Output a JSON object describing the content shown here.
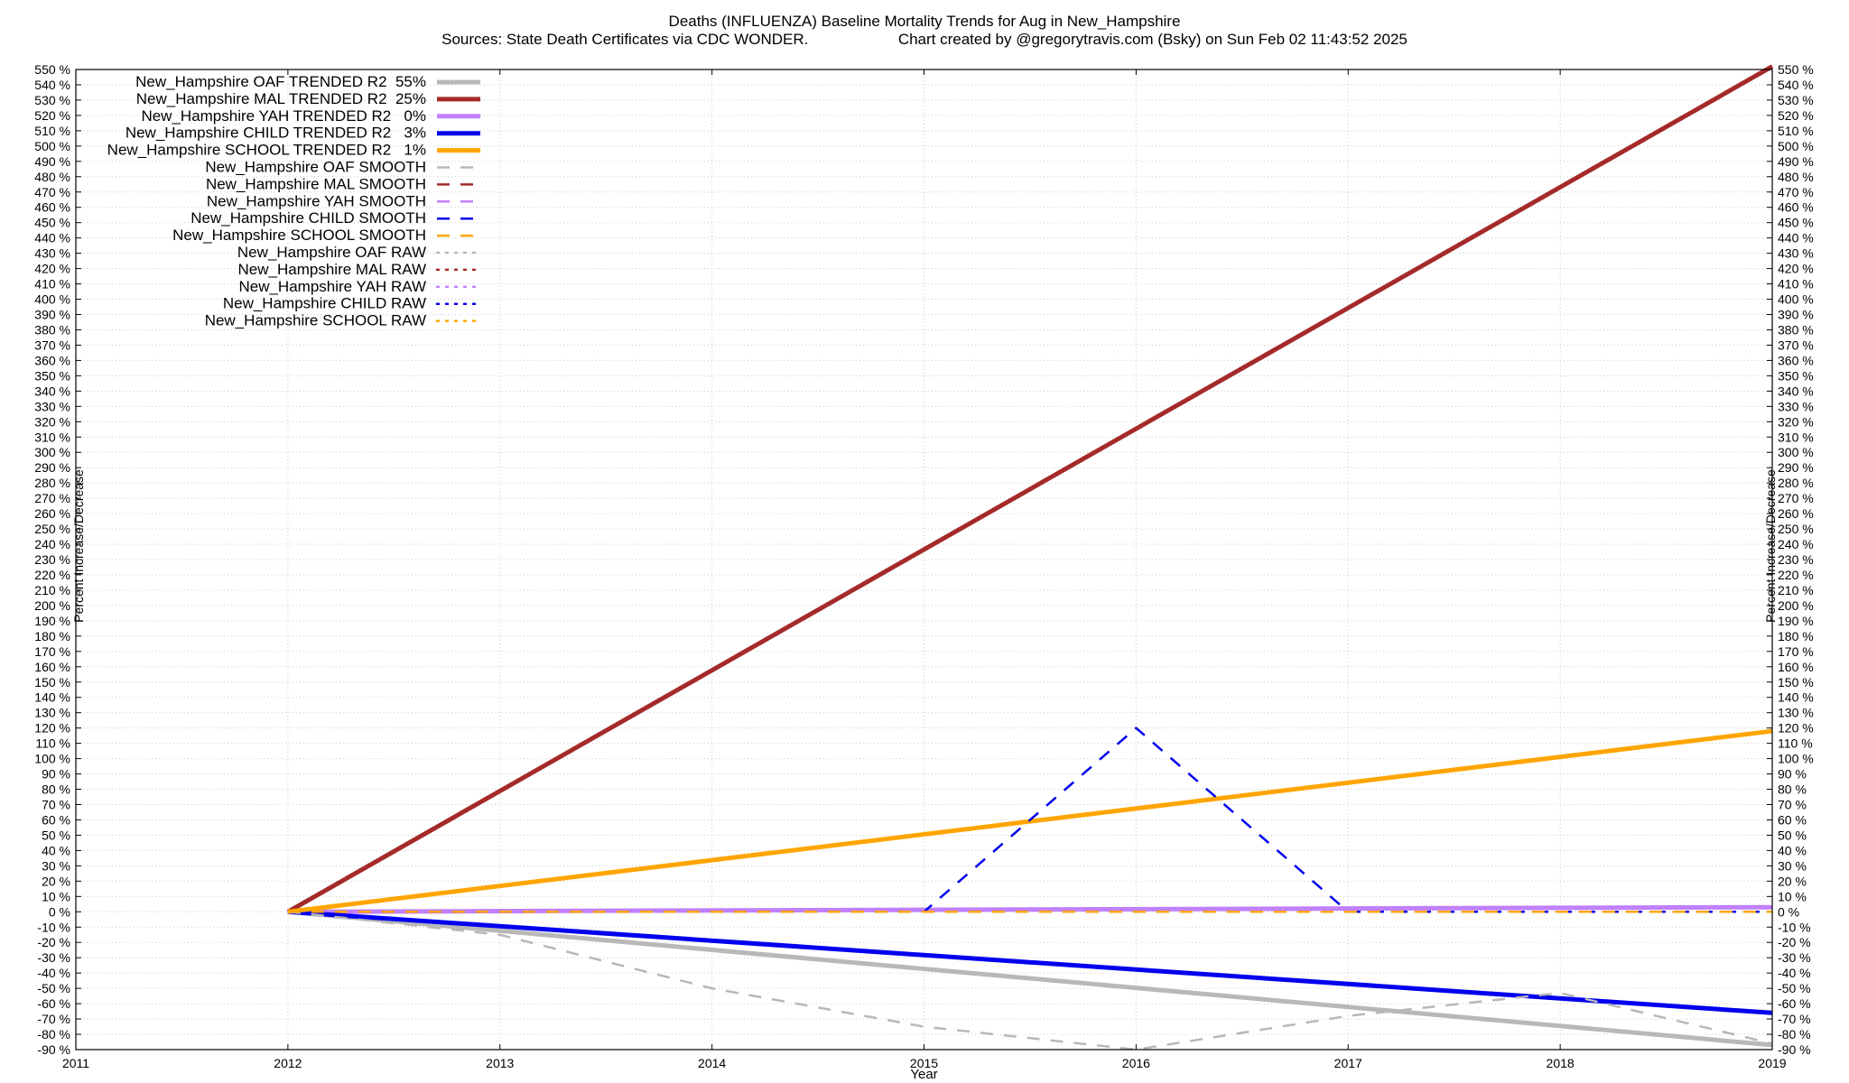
{
  "chart_data": {
    "type": "line",
    "title": "Deaths (INFLUENZA)  Baseline Mortality Trends for Aug in New_Hampshire",
    "subtitle_left": "Sources: State Death Certificates via CDC WONDER.",
    "subtitle_right": "Chart created by @gregorytravis.com (Bsky) on Sun Feb 02 11:43:52 2025",
    "xlabel": "Year",
    "ylabel": "Percent Increase/Decrease",
    "xlim": [
      2011,
      2019
    ],
    "ylim": [
      -90,
      550
    ],
    "xticks": [
      2011,
      2012,
      2013,
      2014,
      2015,
      2016,
      2017,
      2018,
      2019
    ],
    "ytick_step": 10,
    "ytick_suffix": " %",
    "grid": true,
    "legend_position": "top-left",
    "series": [
      {
        "name": "New_Hampshire OAF TRENDED R2  55%",
        "style": "solid",
        "width": 5,
        "color": "#b8b8b8",
        "x": [
          2012,
          2019
        ],
        "y": [
          0,
          -87
        ]
      },
      {
        "name": "New_Hampshire MAL TRENDED R2  25%",
        "style": "solid",
        "width": 5,
        "color": "#a52a2a",
        "x": [
          2012,
          2019
        ],
        "y": [
          0,
          552
        ]
      },
      {
        "name": "New_Hampshire YAH TRENDED R2   0%",
        "style": "solid",
        "width": 5,
        "color": "#c080ff",
        "x": [
          2012,
          2019
        ],
        "y": [
          0,
          3
        ]
      },
      {
        "name": "New_Hampshire CHILD TRENDED R2   3%",
        "style": "solid",
        "width": 5,
        "color": "#0000ee",
        "x": [
          2012,
          2019
        ],
        "y": [
          0,
          -66
        ]
      },
      {
        "name": "New_Hampshire SCHOOL TRENDED R2   1%",
        "style": "solid",
        "width": 5,
        "color": "#ffa500",
        "x": [
          2012,
          2019
        ],
        "y": [
          0,
          118
        ]
      },
      {
        "name": "New_Hampshire OAF SMOOTH",
        "style": "dashed",
        "width": 2.5,
        "color": "#b8b8b8",
        "x": [
          2012,
          2013,
          2014,
          2015,
          2016,
          2017,
          2018,
          2019
        ],
        "y": [
          0,
          -15,
          -50,
          -75,
          -90,
          -68,
          -53,
          -86
        ]
      },
      {
        "name": "New_Hampshire MAL SMOOTH",
        "style": "dashed",
        "width": 2.5,
        "color": "#a52a2a",
        "x": [
          2012,
          2019
        ],
        "y": [
          0,
          0
        ]
      },
      {
        "name": "New_Hampshire YAH SMOOTH",
        "style": "dashed",
        "width": 2.5,
        "color": "#c080ff",
        "x": [
          2012,
          2019
        ],
        "y": [
          0,
          0
        ]
      },
      {
        "name": "New_Hampshire CHILD SMOOTH",
        "style": "dashed",
        "width": 2.5,
        "color": "#0000ee",
        "x": [
          2012,
          2013,
          2014,
          2015,
          2016,
          2017,
          2018,
          2019
        ],
        "y": [
          0,
          0,
          0,
          0,
          120,
          0,
          0,
          0
        ]
      },
      {
        "name": "New_Hampshire SCHOOL SMOOTH",
        "style": "dashed",
        "width": 2.5,
        "color": "#ffa500",
        "x": [
          2012,
          2019
        ],
        "y": [
          0,
          0
        ]
      },
      {
        "name": "New_Hampshire OAF RAW",
        "style": "dotted",
        "width": 2.5,
        "color": "#b8b8b8",
        "x": [],
        "y": []
      },
      {
        "name": "New_Hampshire MAL RAW",
        "style": "dotted",
        "width": 2.5,
        "color": "#a52a2a",
        "x": [],
        "y": []
      },
      {
        "name": "New_Hampshire YAH RAW",
        "style": "dotted",
        "width": 2.5,
        "color": "#c080ff",
        "x": [],
        "y": []
      },
      {
        "name": "New_Hampshire CHILD RAW",
        "style": "dotted",
        "width": 2.5,
        "color": "#0000ee",
        "x": [],
        "y": []
      },
      {
        "name": "New_Hampshire SCHOOL RAW",
        "style": "dotted",
        "width": 2.5,
        "color": "#ffa500",
        "x": [],
        "y": []
      }
    ]
  }
}
